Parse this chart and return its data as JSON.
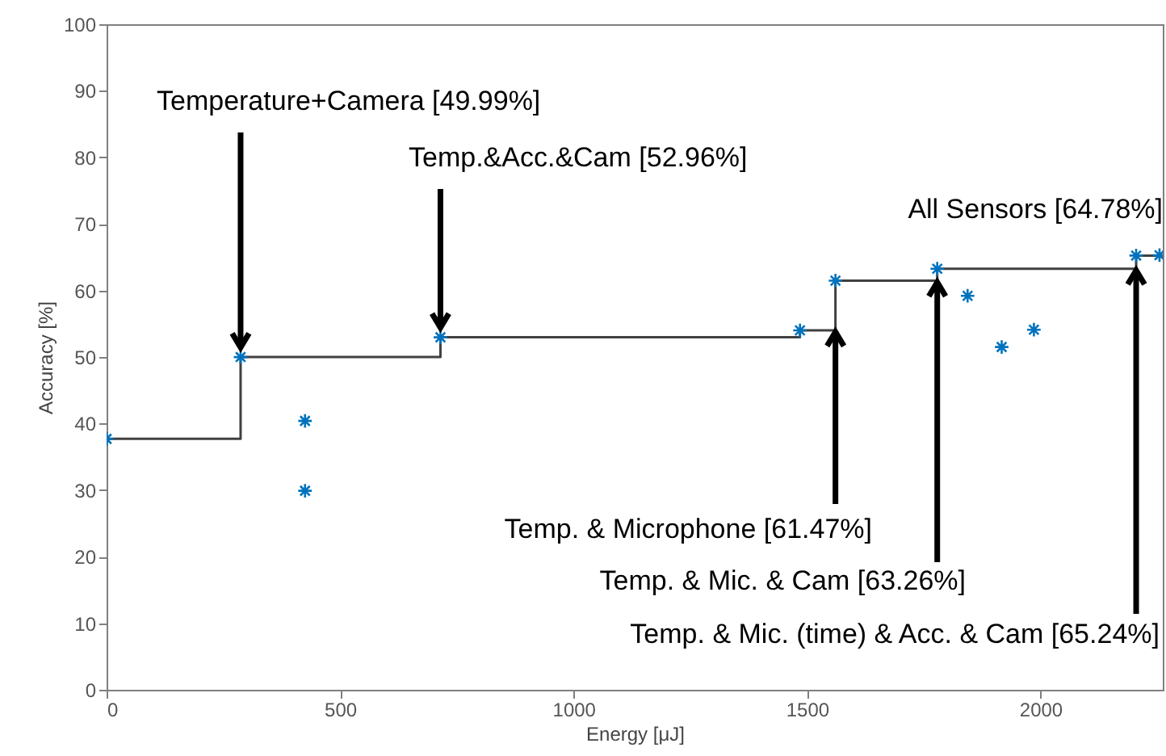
{
  "chart_data": {
    "type": "scatter",
    "xlabel": "Energy [μJ]",
    "ylabel": "Accuracy [%]",
    "xlim": [
      0,
      2262
    ],
    "xticks": [
      0,
      500,
      1000,
      1500,
      2000
    ],
    "ylim": [
      0,
      100
    ],
    "yticks": [
      0,
      10,
      20,
      30,
      40,
      50,
      60,
      70,
      80,
      90,
      100
    ],
    "series": [
      {
        "type": "step",
        "marker": "none",
        "color": "#404040",
        "x": [
          0,
          287,
          715,
          1485,
          1561,
          1779,
          2205,
          2262
        ],
        "values": [
          37.7,
          49.99,
          52.96,
          54.0,
          61.47,
          63.26,
          65.24,
          65.24
        ]
      },
      {
        "marker": "cross",
        "color": "#0072bd",
        "x": [
          0,
          287,
          425,
          425,
          715,
          1485,
          1561,
          1779,
          1844,
          1917,
          1986,
          2205,
          2255
        ],
        "values": [
          37.7,
          49.99,
          29.9,
          40.4,
          52.96,
          54.0,
          61.47,
          63.26,
          59.2,
          51.5,
          54.1,
          65.24,
          65.3
        ]
      }
    ],
    "annotations": [
      {
        "text": "Temperature+Camera [49.99%]",
        "x": 287,
        "y": 49.99
      },
      {
        "text": "Temp.&Acc.&Cam [52.96%]",
        "x": 715,
        "y": 52.96
      },
      "All Sensors [64.78%]",
      {
        "text": "Temp. & Microphone [61.47%]",
        "x": 1561,
        "y": 54.0
      },
      {
        "text": "Temp. & Mic. & Cam [63.26%]",
        "x": 1779,
        "y": 61.47
      },
      {
        "text": "Temp. & Mic. (time) & Acc. & Cam [65.24%]",
        "x": 2205,
        "y": 63.26
      }
    ]
  }
}
